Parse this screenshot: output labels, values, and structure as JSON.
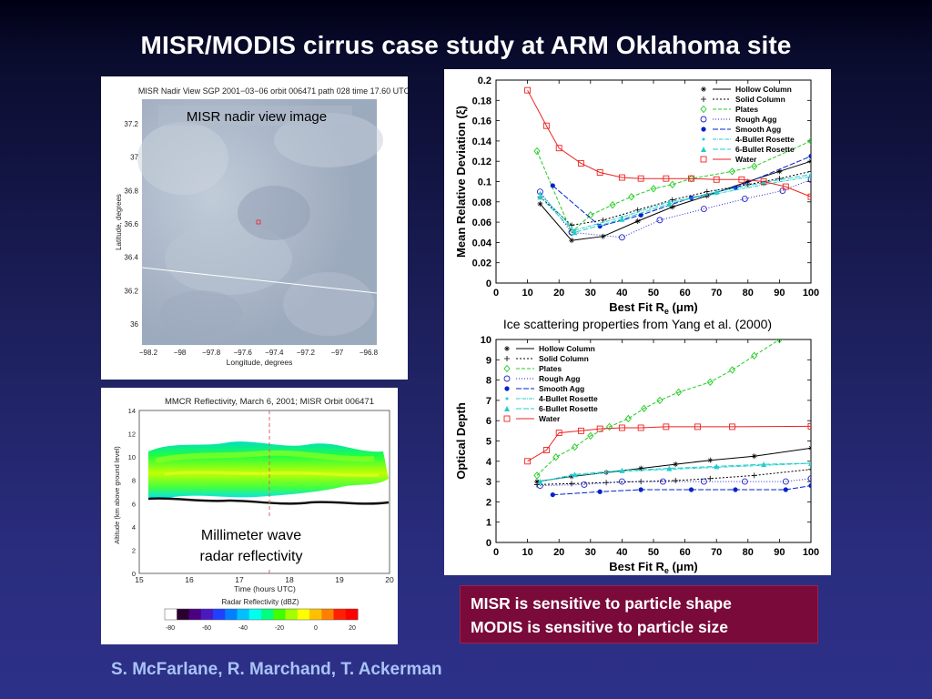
{
  "slide": {
    "title": "MISR/MODIS cirrus case study at ARM Oklahoma site",
    "authors": "S. McFarlane, R. Marchand, T. Ackerman",
    "ice_caption": "Ice scattering properties from Yang et al. (2000)",
    "summary_line1": "MISR is sensitive to particle shape",
    "summary_line2": "MODIS is sensitive to particle size"
  },
  "misr_image": {
    "header": "MISR Nadir View SGP 2001−03−06 orbit 006471 path 028 time 17.60 UTC",
    "overlay_label": "MISR nadir view image",
    "ylabel": "Latitude, degrees",
    "xlabel": "Longitude, degrees",
    "yticks": [
      "37.2",
      "37",
      "36.8",
      "36.6",
      "36.4",
      "36.2",
      "36"
    ],
    "xticks": [
      "−98.2",
      "−98",
      "−97.8",
      "−97.6",
      "−97.4",
      "−97.2",
      "−97",
      "−96.8"
    ]
  },
  "mmcr_image": {
    "header": "MMCR Reflectivity, March 6, 2001; MISR Orbit 006471",
    "overlay_line1": "Millimeter wave",
    "overlay_line2": "radar reflectivity",
    "ylabel": "Altitude (km above ground level)",
    "xlabel": "Time (hours UTC)",
    "yticks": [
      "14",
      "12",
      "10",
      "8",
      "6",
      "4",
      "2",
      "0"
    ],
    "xticks": [
      "15",
      "16",
      "17",
      "18",
      "19",
      "20"
    ],
    "colorbar_title": "Radar Reflectivity (dBZ)",
    "colorbar_ticks": [
      "-80",
      "-60",
      "-40",
      "-20",
      "0",
      "20"
    ],
    "colorbar_colors": [
      "#ffffff",
      "#2a0030",
      "#4a0080",
      "#4a1ac0",
      "#2040ff",
      "#0080ff",
      "#00c0ff",
      "#00ffee",
      "#00ff80",
      "#40ff00",
      "#a0ff00",
      "#ffff00",
      "#ffc000",
      "#ff8000",
      "#ff2000",
      "#ff0000"
    ]
  },
  "chart_data": [
    {
      "type": "line",
      "xlabel_main": "Best Fit R",
      "xlabel_sub": "e",
      "xlabel_unit": " (μm)",
      "ylabel": "Mean Relative Deviation (ξ)",
      "xlim": [
        0,
        100
      ],
      "ylim": [
        0,
        0.2
      ],
      "xticks": [
        0,
        10,
        20,
        30,
        40,
        50,
        60,
        70,
        80,
        90,
        100
      ],
      "yticks": [
        0,
        0.02,
        0.04,
        0.06,
        0.08,
        0.1,
        0.12,
        0.14,
        0.16,
        0.18,
        0.2
      ],
      "legend_position": "top-right",
      "series": [
        {
          "name": "Hollow Column",
          "color": "#000000",
          "dash": "",
          "marker": "star",
          "x": [
            14,
            24,
            34,
            45,
            56,
            67,
            80,
            90,
            100
          ],
          "y": [
            0.078,
            0.042,
            0.046,
            0.061,
            0.075,
            0.086,
            0.1,
            0.11,
            0.12
          ]
        },
        {
          "name": "Solid Column",
          "color": "#000000",
          "dash": "2,2",
          "marker": "plus",
          "x": [
            14,
            24,
            34,
            45,
            56,
            67,
            80,
            90,
            100
          ],
          "y": [
            0.085,
            0.057,
            0.062,
            0.072,
            0.082,
            0.09,
            0.097,
            0.103,
            0.11
          ]
        },
        {
          "name": "Plates",
          "color": "#22cc22",
          "dash": "4,2",
          "marker": "diamond",
          "x": [
            13,
            24,
            30,
            37,
            43,
            50,
            56,
            62,
            75,
            82,
            100
          ],
          "y": [
            0.13,
            0.05,
            0.067,
            0.077,
            0.085,
            0.093,
            0.097,
            0.103,
            0.11,
            0.115,
            0.14
          ]
        },
        {
          "name": "Rough Agg",
          "color": "#2222cc",
          "dash": "1,2",
          "marker": "circle",
          "x": [
            14,
            24,
            40,
            52,
            66,
            79,
            91,
            100
          ],
          "y": [
            0.09,
            0.05,
            0.045,
            0.062,
            0.073,
            0.083,
            0.091,
            0.102
          ]
        },
        {
          "name": "Smooth Agg",
          "color": "#0022cc",
          "dash": "6,2",
          "marker": "dot",
          "x": [
            18,
            33,
            46,
            62,
            76,
            100
          ],
          "y": [
            0.096,
            0.056,
            0.067,
            0.084,
            0.094,
            0.125
          ]
        },
        {
          "name": "4-Bullet Rosette",
          "color": "#22cccc",
          "dash": "4,1,1,1",
          "marker": "dot-small",
          "x": [
            14,
            25,
            40,
            55,
            70,
            85,
            100
          ],
          "y": [
            0.088,
            0.052,
            0.065,
            0.08,
            0.088,
            0.097,
            0.105
          ]
        },
        {
          "name": "6-Bullet Rosette",
          "color": "#22cccc",
          "dash": "6,2",
          "marker": "triangle",
          "x": [
            14,
            25,
            40,
            55,
            70,
            85,
            100
          ],
          "y": [
            0.085,
            0.05,
            0.063,
            0.078,
            0.09,
            0.099,
            0.107
          ]
        },
        {
          "name": "Water",
          "color": "#ee2222",
          "dash": "",
          "marker": "square",
          "x": [
            10,
            16,
            20,
            27,
            33,
            40,
            46,
            54,
            62,
            70,
            78,
            85,
            92,
            100
          ],
          "y": [
            0.19,
            0.155,
            0.133,
            0.118,
            0.109,
            0.104,
            0.103,
            0.103,
            0.103,
            0.102,
            0.102,
            0.1,
            0.095,
            0.085
          ]
        }
      ]
    },
    {
      "type": "line",
      "xlabel_main": "Best Fit R",
      "xlabel_sub": "e",
      "xlabel_unit": " (μm)",
      "ylabel": "Optical Depth",
      "xlim": [
        0,
        100
      ],
      "ylim": [
        0,
        10
      ],
      "xticks": [
        0,
        10,
        20,
        30,
        40,
        50,
        60,
        70,
        80,
        90,
        100
      ],
      "yticks": [
        0,
        1,
        2,
        3,
        4,
        5,
        6,
        7,
        8,
        9,
        10
      ],
      "legend_position": "top-left",
      "series": [
        {
          "name": "Hollow Column",
          "color": "#000000",
          "dash": "",
          "marker": "star",
          "x": [
            13,
            24,
            35,
            46,
            57,
            68,
            82,
            100
          ],
          "y": [
            3.0,
            3.25,
            3.45,
            3.65,
            3.85,
            4.05,
            4.25,
            4.65
          ]
        },
        {
          "name": "Solid Column",
          "color": "#000000",
          "dash": "2,2",
          "marker": "plus",
          "x": [
            13,
            24,
            35,
            46,
            57,
            68,
            82,
            100
          ],
          "y": [
            2.85,
            2.9,
            2.95,
            3.0,
            3.05,
            3.15,
            3.3,
            3.6
          ]
        },
        {
          "name": "Plates",
          "color": "#22cc22",
          "dash": "4,2",
          "marker": "diamond",
          "x": [
            13,
            19,
            25,
            30,
            36,
            42,
            47,
            52,
            58,
            68,
            75,
            82,
            90
          ],
          "y": [
            3.3,
            4.2,
            4.7,
            5.25,
            5.7,
            6.1,
            6.6,
            7.0,
            7.4,
            7.9,
            8.5,
            9.2,
            10.0
          ]
        },
        {
          "name": "Rough Agg",
          "color": "#2222cc",
          "dash": "1,2",
          "marker": "circle",
          "x": [
            14,
            28,
            40,
            53,
            66,
            79,
            92,
            100
          ],
          "y": [
            2.8,
            2.85,
            3.0,
            3.0,
            3.0,
            3.0,
            3.0,
            3.15
          ]
        },
        {
          "name": "Smooth Agg",
          "color": "#0022cc",
          "dash": "6,2",
          "marker": "dot",
          "x": [
            18,
            33,
            46,
            62,
            76,
            92,
            100
          ],
          "y": [
            2.35,
            2.5,
            2.6,
            2.6,
            2.6,
            2.6,
            2.8
          ]
        },
        {
          "name": "4-Bullet Rosette",
          "color": "#22cccc",
          "dash": "4,1,1,1",
          "marker": "dot-small",
          "x": [
            14,
            25,
            40,
            55,
            70,
            85,
            100
          ],
          "y": [
            3.0,
            3.3,
            3.5,
            3.6,
            3.7,
            3.8,
            3.9
          ]
        },
        {
          "name": "6-Bullet Rosette",
          "color": "#22cccc",
          "dash": "6,2",
          "marker": "triangle",
          "x": [
            14,
            25,
            40,
            55,
            70,
            85,
            100
          ],
          "y": [
            3.0,
            3.35,
            3.55,
            3.65,
            3.75,
            3.85,
            3.9
          ]
        },
        {
          "name": "Water",
          "color": "#ee2222",
          "dash": "",
          "marker": "square",
          "x": [
            10,
            16,
            20,
            27,
            33,
            40,
            46,
            54,
            64,
            75,
            100
          ],
          "y": [
            4.0,
            4.55,
            5.4,
            5.5,
            5.6,
            5.65,
            5.65,
            5.7,
            5.7,
            5.7,
            5.72
          ]
        }
      ]
    }
  ]
}
